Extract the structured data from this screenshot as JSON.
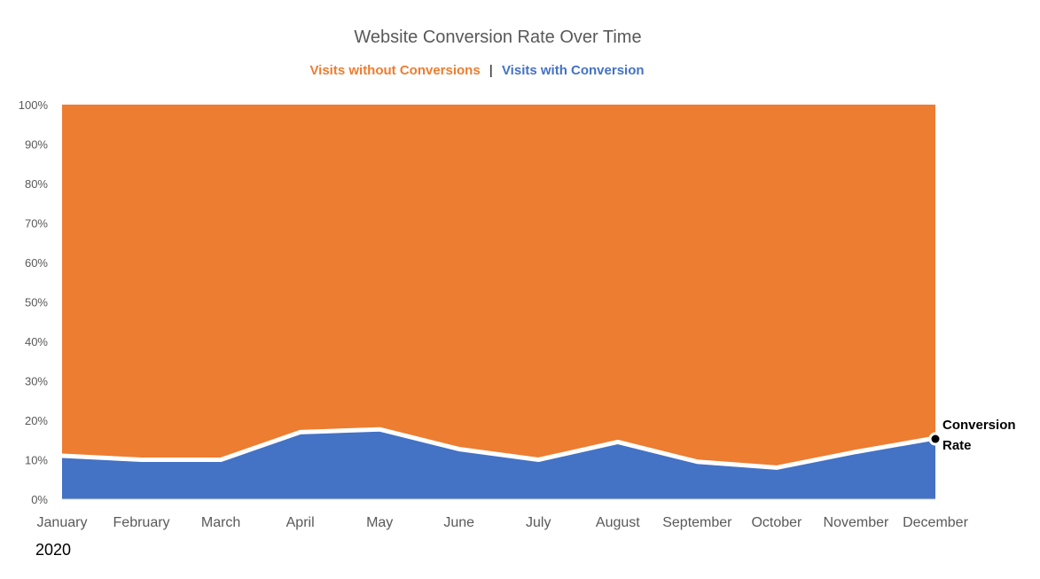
{
  "chart_data": {
    "type": "area",
    "title": "Website Conversion Rate Over Time",
    "stacked_percent": true,
    "categories": [
      "January",
      "February",
      "March",
      "April",
      "May",
      "June",
      "July",
      "August",
      "September",
      "October",
      "November",
      "December"
    ],
    "series": [
      {
        "name": "Visits with Conversion",
        "color": "#4472C4",
        "values": [
          11,
          10,
          10,
          17,
          17.7,
          12.7,
          10,
          14.5,
          9.5,
          8,
          12,
          15.5
        ]
      },
      {
        "name": "Visits without Conversions",
        "color": "#ED7D31",
        "values": [
          89,
          90,
          90,
          83,
          82.3,
          87.3,
          90,
          85.5,
          90.5,
          92,
          88,
          84.5
        ]
      }
    ],
    "conversion_rate_line": [
      11,
      10,
      10,
      17,
      17.7,
      12.7,
      10,
      14.5,
      9.5,
      8,
      12,
      15.5
    ],
    "ylim": [
      0,
      100
    ],
    "y_ticks": [
      "0%",
      "10%",
      "20%",
      "30%",
      "40%",
      "50%",
      "60%",
      "70%",
      "80%",
      "90%",
      "100%"
    ],
    "year_label": "2020",
    "series_label_line1": "Conversion",
    "series_label_line2": "Rate"
  },
  "legend": {
    "without_label": "Visits without Conversions",
    "separator": "|",
    "with_label": "Visits with Conversion"
  }
}
